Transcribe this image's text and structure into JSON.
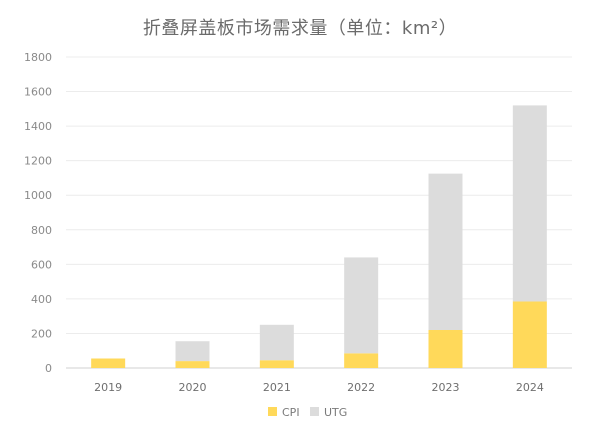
{
  "chart_data": {
    "type": "bar",
    "stacked": true,
    "title": "折叠屏盖板市场需求量（单位：km²）",
    "categories": [
      "2019",
      "2020",
      "2021",
      "2022",
      "2023",
      "2024"
    ],
    "series": [
      {
        "name": "CPI",
        "color": "#FFD95A",
        "values": [
          55,
          40,
          45,
          85,
          220,
          385
        ]
      },
      {
        "name": "UTG",
        "color": "#DCDCDC",
        "values": [
          0,
          115,
          205,
          555,
          905,
          1135
        ]
      }
    ],
    "ylim": [
      0,
      1800
    ],
    "yticks": [
      0,
      200,
      400,
      600,
      800,
      1000,
      1200,
      1400,
      1600,
      1800
    ],
    "grid": true,
    "legend_position": "bottom-center"
  }
}
